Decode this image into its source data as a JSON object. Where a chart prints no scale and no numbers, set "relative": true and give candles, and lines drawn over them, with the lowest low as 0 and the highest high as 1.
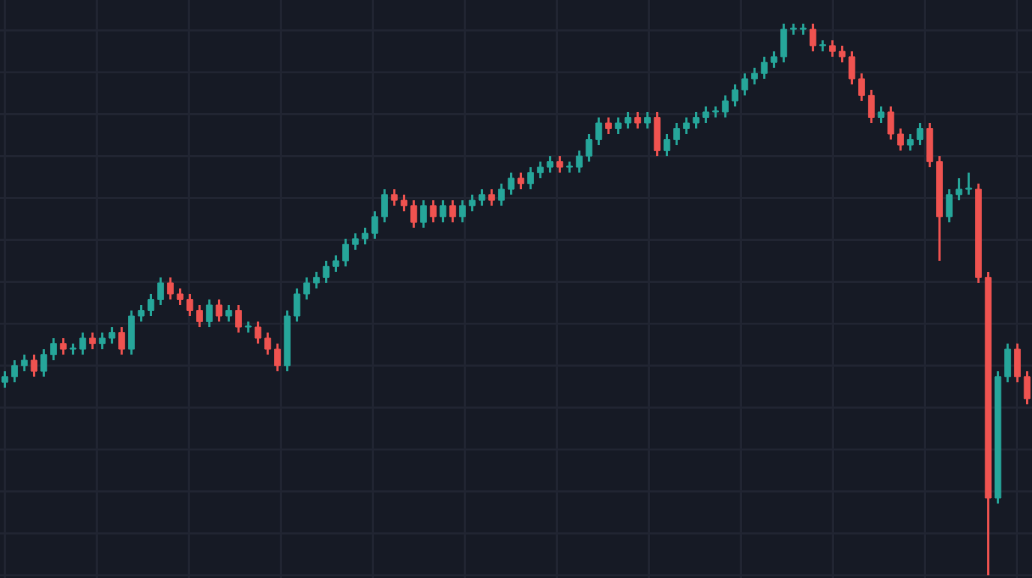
{
  "chart_data": {
    "type": "candlestick",
    "relative": true,
    "grid": true,
    "tick_labels": false,
    "colors": [
      "#26a69a",
      "#26a69a",
      "#26a69a",
      "#ef5350",
      "#26a69a",
      "#26a69a",
      "#ef5350",
      "#26a69a",
      "#26a69a",
      "#ef5350",
      "#26a69a",
      "#26a69a",
      "#ef5350",
      "#26a69a",
      "#26a69a",
      "#26a69a",
      "#26a69a",
      "#ef5350",
      "#ef5350",
      "#ef5350",
      "#ef5350",
      "#26a69a",
      "#ef5350",
      "#26a69a",
      "#ef5350",
      "#26a69a",
      "#ef5350",
      "#ef5350",
      "#ef5350",
      "#26a69a",
      "#26a69a",
      "#26a69a",
      "#26a69a",
      "#26a69a",
      "#26a69a",
      "#26a69a",
      "#26a69a",
      "#26a69a",
      "#26a69a",
      "#26a69a",
      "#ef5350",
      "#ef5350",
      "#ef5350",
      "#26a69a",
      "#ef5350",
      "#26a69a",
      "#ef5350",
      "#26a69a",
      "#26a69a",
      "#26a69a",
      "#ef5350",
      "#26a69a",
      "#26a69a",
      "#ef5350",
      "#26a69a",
      "#26a69a",
      "#26a69a",
      "#ef5350",
      "#26a69a",
      "#26a69a",
      "#26a69a",
      "#26a69a",
      "#ef5350",
      "#26a69a",
      "#26a69a",
      "#ef5350",
      "#26a69a",
      "#ef5350",
      "#26a69a",
      "#26a69a",
      "#26a69a",
      "#26a69a",
      "#26a69a",
      "#26a69a",
      "#26a69a",
      "#26a69a",
      "#26a69a",
      "#26a69a",
      "#26a69a",
      "#26a69a",
      "#26a69a",
      "#26a69a",
      "#26a69a",
      "#ef5350",
      "#26a69a",
      "#ef5350",
      "#ef5350",
      "#ef5350",
      "#ef5350",
      "#ef5350",
      "#26a69a",
      "#ef5350",
      "#ef5350",
      "#26a69a",
      "#26a69a",
      "#ef5350",
      "#ef5350",
      "#26a69a",
      "#26a69a",
      "#26a69a",
      "#ef5350",
      "#ef5350",
      "#26a69a",
      "#26a69a",
      "#ef5350",
      "#ef5350"
    ],
    "categories": [
      null,
      null,
      null,
      null,
      null,
      null,
      null,
      null,
      null,
      null,
      null,
      null,
      null,
      null,
      null,
      null,
      null,
      null,
      null,
      null,
      null,
      null,
      null,
      null,
      null,
      null,
      null,
      null,
      null,
      null,
      null,
      null,
      null,
      null,
      null,
      null,
      null,
      null,
      null,
      null,
      null,
      null,
      null,
      null,
      null,
      null,
      null,
      null,
      null,
      null,
      null,
      null,
      null,
      null,
      null,
      null,
      null,
      null,
      null,
      null,
      null,
      null,
      null,
      null,
      null,
      null,
      null,
      null,
      null,
      null,
      null,
      null,
      null,
      null,
      null,
      null,
      null,
      null,
      null,
      null,
      null,
      null,
      null,
      null,
      null,
      null,
      null,
      null,
      null,
      null,
      null,
      null,
      null,
      null,
      null,
      null,
      null,
      null,
      null,
      null,
      null,
      null,
      null,
      null,
      null,
      null
    ],
    "ohlc": [
      [
        0.35,
        0.37,
        0.34,
        0.36
      ],
      [
        0.36,
        0.39,
        0.35,
        0.38
      ],
      [
        0.38,
        0.4,
        0.37,
        0.39
      ],
      [
        0.39,
        0.4,
        0.36,
        0.37
      ],
      [
        0.37,
        0.41,
        0.36,
        0.4
      ],
      [
        0.4,
        0.43,
        0.39,
        0.42
      ],
      [
        0.42,
        0.43,
        0.4,
        0.41
      ],
      [
        0.41,
        0.42,
        0.4,
        0.41
      ],
      [
        0.41,
        0.44,
        0.4,
        0.43
      ],
      [
        0.43,
        0.44,
        0.41,
        0.42
      ],
      [
        0.42,
        0.44,
        0.41,
        0.43
      ],
      [
        0.43,
        0.45,
        0.42,
        0.44
      ],
      [
        0.44,
        0.45,
        0.4,
        0.41
      ],
      [
        0.41,
        0.48,
        0.4,
        0.47
      ],
      [
        0.47,
        0.49,
        0.46,
        0.48
      ],
      [
        0.48,
        0.51,
        0.47,
        0.5
      ],
      [
        0.5,
        0.54,
        0.49,
        0.53
      ],
      [
        0.53,
        0.54,
        0.5,
        0.51
      ],
      [
        0.51,
        0.52,
        0.49,
        0.5
      ],
      [
        0.5,
        0.51,
        0.47,
        0.48
      ],
      [
        0.48,
        0.49,
        0.45,
        0.46
      ],
      [
        0.46,
        0.5,
        0.45,
        0.49
      ],
      [
        0.49,
        0.5,
        0.46,
        0.47
      ],
      [
        0.47,
        0.49,
        0.46,
        0.48
      ],
      [
        0.48,
        0.49,
        0.44,
        0.45
      ],
      [
        0.45,
        0.46,
        0.44,
        0.45
      ],
      [
        0.45,
        0.46,
        0.42,
        0.43
      ],
      [
        0.43,
        0.44,
        0.4,
        0.41
      ],
      [
        0.41,
        0.42,
        0.37,
        0.38
      ],
      [
        0.38,
        0.48,
        0.37,
        0.47
      ],
      [
        0.47,
        0.52,
        0.46,
        0.51
      ],
      [
        0.51,
        0.54,
        0.5,
        0.53
      ],
      [
        0.53,
        0.55,
        0.52,
        0.54
      ],
      [
        0.54,
        0.57,
        0.53,
        0.56
      ],
      [
        0.56,
        0.58,
        0.55,
        0.57
      ],
      [
        0.57,
        0.61,
        0.56,
        0.6
      ],
      [
        0.6,
        0.62,
        0.59,
        0.61
      ],
      [
        0.61,
        0.63,
        0.6,
        0.62
      ],
      [
        0.62,
        0.66,
        0.61,
        0.65
      ],
      [
        0.65,
        0.7,
        0.64,
        0.69
      ],
      [
        0.69,
        0.7,
        0.67,
        0.68
      ],
      [
        0.68,
        0.69,
        0.66,
        0.67
      ],
      [
        0.67,
        0.68,
        0.63,
        0.64
      ],
      [
        0.64,
        0.68,
        0.63,
        0.67
      ],
      [
        0.67,
        0.68,
        0.64,
        0.65
      ],
      [
        0.65,
        0.68,
        0.64,
        0.67
      ],
      [
        0.67,
        0.68,
        0.64,
        0.65
      ],
      [
        0.65,
        0.68,
        0.64,
        0.67
      ],
      [
        0.67,
        0.69,
        0.66,
        0.68
      ],
      [
        0.68,
        0.7,
        0.67,
        0.69
      ],
      [
        0.69,
        0.7,
        0.67,
        0.68
      ],
      [
        0.68,
        0.71,
        0.67,
        0.7
      ],
      [
        0.7,
        0.73,
        0.69,
        0.72
      ],
      [
        0.72,
        0.73,
        0.7,
        0.71
      ],
      [
        0.71,
        0.74,
        0.7,
        0.73
      ],
      [
        0.73,
        0.75,
        0.72,
        0.74
      ],
      [
        0.74,
        0.76,
        0.73,
        0.75
      ],
      [
        0.75,
        0.76,
        0.73,
        0.74
      ],
      [
        0.74,
        0.75,
        0.73,
        0.74
      ],
      [
        0.74,
        0.77,
        0.73,
        0.76
      ],
      [
        0.76,
        0.8,
        0.75,
        0.79
      ],
      [
        0.79,
        0.83,
        0.78,
        0.82
      ],
      [
        0.82,
        0.83,
        0.8,
        0.81
      ],
      [
        0.81,
        0.83,
        0.8,
        0.82
      ],
      [
        0.82,
        0.84,
        0.81,
        0.83
      ],
      [
        0.83,
        0.84,
        0.81,
        0.82
      ],
      [
        0.82,
        0.84,
        0.81,
        0.83
      ],
      [
        0.83,
        0.84,
        0.76,
        0.77
      ],
      [
        0.77,
        0.8,
        0.76,
        0.79
      ],
      [
        0.79,
        0.82,
        0.78,
        0.81
      ],
      [
        0.81,
        0.83,
        0.8,
        0.82
      ],
      [
        0.82,
        0.84,
        0.81,
        0.83
      ],
      [
        0.83,
        0.85,
        0.82,
        0.84
      ],
      [
        0.84,
        0.85,
        0.83,
        0.84
      ],
      [
        0.84,
        0.87,
        0.83,
        0.86
      ],
      [
        0.86,
        0.89,
        0.85,
        0.88
      ],
      [
        0.88,
        0.91,
        0.87,
        0.9
      ],
      [
        0.9,
        0.92,
        0.89,
        0.91
      ],
      [
        0.91,
        0.94,
        0.9,
        0.93
      ],
      [
        0.93,
        0.95,
        0.92,
        0.94
      ],
      [
        0.94,
        1.0,
        0.93,
        0.99
      ],
      [
        0.99,
        1.0,
        0.98,
        0.99
      ],
      [
        0.99,
        1.0,
        0.98,
        0.99
      ],
      [
        0.99,
        1.0,
        0.95,
        0.96
      ],
      [
        0.96,
        0.97,
        0.95,
        0.96
      ],
      [
        0.96,
        0.97,
        0.94,
        0.95
      ],
      [
        0.95,
        0.96,
        0.93,
        0.94
      ],
      [
        0.94,
        0.95,
        0.89,
        0.9
      ],
      [
        0.9,
        0.91,
        0.86,
        0.87
      ],
      [
        0.87,
        0.88,
        0.82,
        0.83
      ],
      [
        0.83,
        0.85,
        0.82,
        0.84
      ],
      [
        0.84,
        0.85,
        0.79,
        0.8
      ],
      [
        0.8,
        0.81,
        0.77,
        0.78
      ],
      [
        0.78,
        0.8,
        0.77,
        0.79
      ],
      [
        0.79,
        0.82,
        0.78,
        0.81
      ],
      [
        0.81,
        0.82,
        0.74,
        0.75
      ],
      [
        0.75,
        0.76,
        0.57,
        0.65
      ],
      [
        0.65,
        0.7,
        0.64,
        0.69
      ],
      [
        0.69,
        0.72,
        0.68,
        0.7
      ],
      [
        0.7,
        0.73,
        0.69,
        0.7
      ],
      [
        0.7,
        0.71,
        0.53,
        0.54
      ],
      [
        0.54,
        0.55,
        0.0,
        0.14
      ],
      [
        0.14,
        0.37,
        0.13,
        0.36
      ],
      [
        0.36,
        0.42,
        0.35,
        0.41
      ],
      [
        0.41,
        0.42,
        0.35,
        0.36
      ],
      [
        0.36,
        0.37,
        0.31,
        0.32
      ]
    ]
  }
}
